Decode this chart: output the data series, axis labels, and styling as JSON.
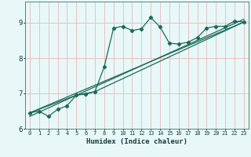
{
  "xlabel": "Humidex (Indice chaleur)",
  "bg_color": "#e8f8f8",
  "grid_color": "#e8b8b8",
  "line_color": "#1a6b5a",
  "xlim": [
    -0.5,
    23.5
  ],
  "ylim": [
    6.0,
    9.6
  ],
  "yticks": [
    6,
    7,
    8,
    9
  ],
  "xticks": [
    0,
    1,
    2,
    3,
    4,
    5,
    6,
    7,
    8,
    9,
    10,
    11,
    12,
    13,
    14,
    15,
    16,
    17,
    18,
    19,
    20,
    21,
    22,
    23
  ],
  "line1_x": [
    0,
    1,
    2,
    3,
    4,
    5,
    6,
    7,
    8,
    9,
    10,
    11,
    12,
    13,
    14,
    15,
    16,
    17,
    18,
    19,
    20,
    21,
    22,
    23
  ],
  "line1_y": [
    6.45,
    6.5,
    6.35,
    6.55,
    6.65,
    6.95,
    6.98,
    7.05,
    7.75,
    8.85,
    8.9,
    8.78,
    8.83,
    9.15,
    8.88,
    8.42,
    8.4,
    8.45,
    8.58,
    8.85,
    8.9,
    8.9,
    9.05,
    9.02
  ],
  "line2_x": [
    0,
    5,
    7,
    23
  ],
  "line2_y": [
    6.45,
    6.95,
    7.05,
    9.02
  ],
  "line3_x": [
    0,
    23
  ],
  "line3_y": [
    6.45,
    9.02
  ],
  "line4_x": [
    0,
    23
  ],
  "line4_y": [
    6.35,
    9.1
  ]
}
